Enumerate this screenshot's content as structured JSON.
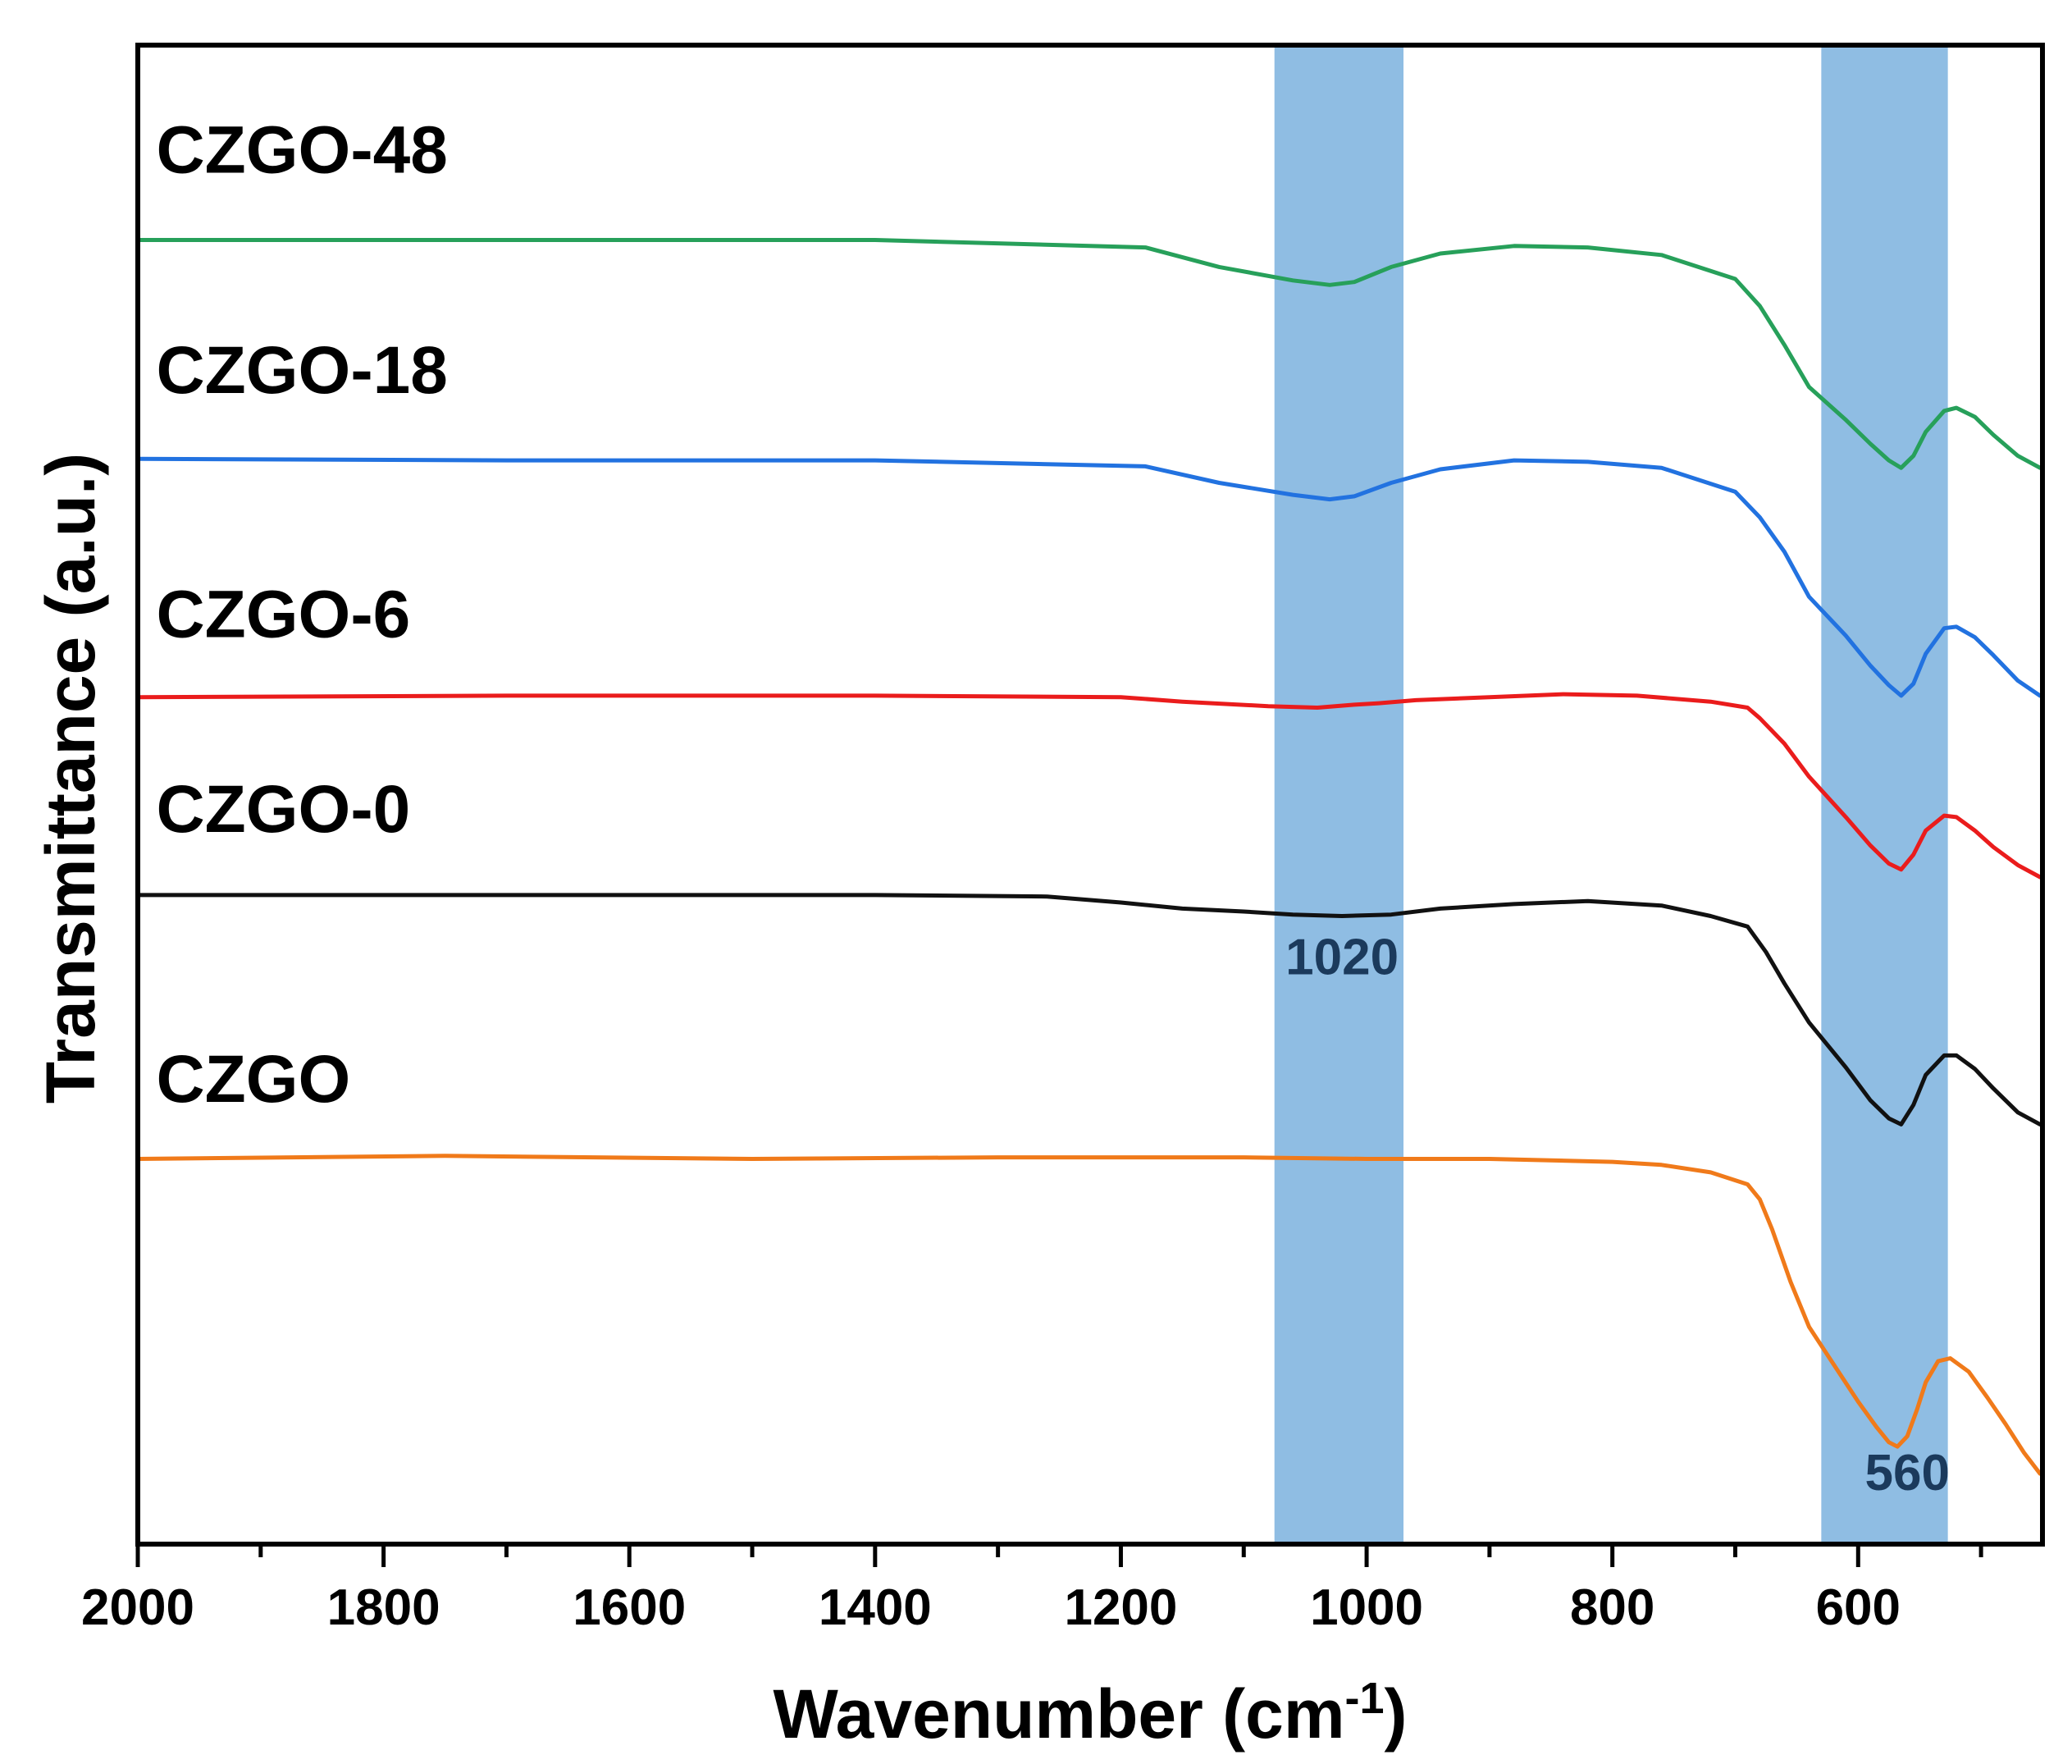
{
  "chart_data": {
    "type": "line",
    "title": "",
    "xlabel": "Wavenumber",
    "xlabel_unit_base": "cm",
    "xlabel_unit_exp": "-1",
    "ylabel": "Transmittance (a.u.)",
    "xlim": [
      2000,
      450
    ],
    "x_reversed": true,
    "ylim": [
      0,
      100
    ],
    "x_ticks": [
      2000,
      1800,
      1600,
      1400,
      1200,
      1000,
      800,
      600
    ],
    "x_minor_step": 100,
    "y_ticks_shown": false,
    "grid": false,
    "bands": [
      {
        "from": 1075,
        "to": 970,
        "label": "1020",
        "label_x": 1020,
        "label_y": 38,
        "color": "#8fbde3"
      },
      {
        "from": 630,
        "to": 527,
        "label": "560",
        "label_x": 560,
        "label_y": 3.6,
        "color": "#8fbde3"
      }
    ],
    "series": [
      {
        "name": "CZGO-48",
        "color": "#27a05a",
        "label_x": 1985,
        "label_y": 91.5,
        "x": [
          2000,
          1700,
          1400,
          1180,
          1120,
          1060,
          1030,
          1010,
          980,
          940,
          880,
          820,
          760,
          700,
          680,
          660,
          640,
          610,
          590,
          575,
          565,
          555,
          545,
          530,
          520,
          505,
          490,
          470,
          452
        ],
        "y": [
          87.0,
          87.0,
          87.0,
          86.5,
          85.2,
          84.3,
          84.0,
          84.2,
          85.2,
          86.1,
          86.6,
          86.5,
          86.0,
          84.4,
          82.6,
          80.0,
          77.2,
          75.0,
          73.4,
          72.3,
          71.8,
          72.6,
          74.2,
          75.6,
          75.8,
          75.2,
          74.0,
          72.6,
          71.8
        ]
      },
      {
        "name": "CZGO-18",
        "color": "#2272e0",
        "label_x": 1985,
        "label_y": 76.8,
        "x": [
          2000,
          1700,
          1400,
          1180,
          1120,
          1060,
          1030,
          1010,
          980,
          940,
          880,
          820,
          760,
          700,
          680,
          660,
          640,
          610,
          590,
          575,
          565,
          555,
          545,
          530,
          520,
          505,
          490,
          470,
          452
        ],
        "y": [
          72.4,
          72.3,
          72.3,
          71.9,
          70.8,
          70.0,
          69.7,
          69.9,
          70.8,
          71.7,
          72.3,
          72.2,
          71.8,
          70.2,
          68.5,
          66.2,
          63.2,
          60.6,
          58.6,
          57.3,
          56.6,
          57.4,
          59.4,
          61.1,
          61.2,
          60.5,
          59.3,
          57.6,
          56.6
        ]
      },
      {
        "name": "CZGO-6",
        "color": "#ea1c1c",
        "label_x": 1985,
        "label_y": 60.5,
        "x": [
          2000,
          1700,
          1400,
          1200,
          1150,
          1080,
          1040,
          1010,
          990,
          960,
          900,
          840,
          780,
          720,
          690,
          680,
          660,
          640,
          610,
          590,
          575,
          565,
          555,
          545,
          530,
          520,
          505,
          490,
          470,
          452
        ],
        "y": [
          56.5,
          56.6,
          56.6,
          56.5,
          56.2,
          55.9,
          55.8,
          56.0,
          56.1,
          56.3,
          56.5,
          56.7,
          56.6,
          56.2,
          55.8,
          55.1,
          53.4,
          51.2,
          48.5,
          46.6,
          45.4,
          45.0,
          46.0,
          47.6,
          48.6,
          48.5,
          47.6,
          46.5,
          45.3,
          44.5
        ]
      },
      {
        "name": "CZGO-0",
        "color": "#111111",
        "label_x": 1985,
        "label_y": 47.5,
        "x": [
          2000,
          1700,
          1400,
          1260,
          1200,
          1150,
          1100,
          1060,
          1020,
          980,
          940,
          880,
          820,
          760,
          720,
          690,
          675,
          660,
          640,
          610,
          590,
          575,
          565,
          555,
          545,
          530,
          520,
          505,
          490,
          470,
          452
        ],
        "y": [
          43.3,
          43.3,
          43.3,
          43.2,
          42.8,
          42.4,
          42.2,
          42.0,
          41.9,
          42.0,
          42.4,
          42.7,
          42.9,
          42.6,
          41.9,
          41.2,
          39.5,
          37.4,
          34.8,
          31.8,
          29.6,
          28.4,
          28.0,
          29.3,
          31.3,
          32.6,
          32.6,
          31.7,
          30.4,
          28.8,
          28.0
        ]
      },
      {
        "name": "CZGO",
        "color": "#f07a1a",
        "label_x": 1985,
        "label_y": 29.5,
        "x": [
          2000,
          1750,
          1500,
          1300,
          1200,
          1100,
          1000,
          900,
          800,
          760,
          720,
          690,
          680,
          670,
          655,
          640,
          620,
          600,
          585,
          575,
          568,
          560,
          552,
          545,
          535,
          525,
          510,
          495,
          480,
          465,
          452
        ],
        "y": [
          25.7,
          25.9,
          25.7,
          25.8,
          25.8,
          25.8,
          25.7,
          25.7,
          25.5,
          25.3,
          24.8,
          24.0,
          23.0,
          21.0,
          17.5,
          14.5,
          12.0,
          9.5,
          7.8,
          6.8,
          6.5,
          7.2,
          9.0,
          10.8,
          12.2,
          12.4,
          11.5,
          9.8,
          8.0,
          6.1,
          4.7
        ]
      }
    ]
  }
}
